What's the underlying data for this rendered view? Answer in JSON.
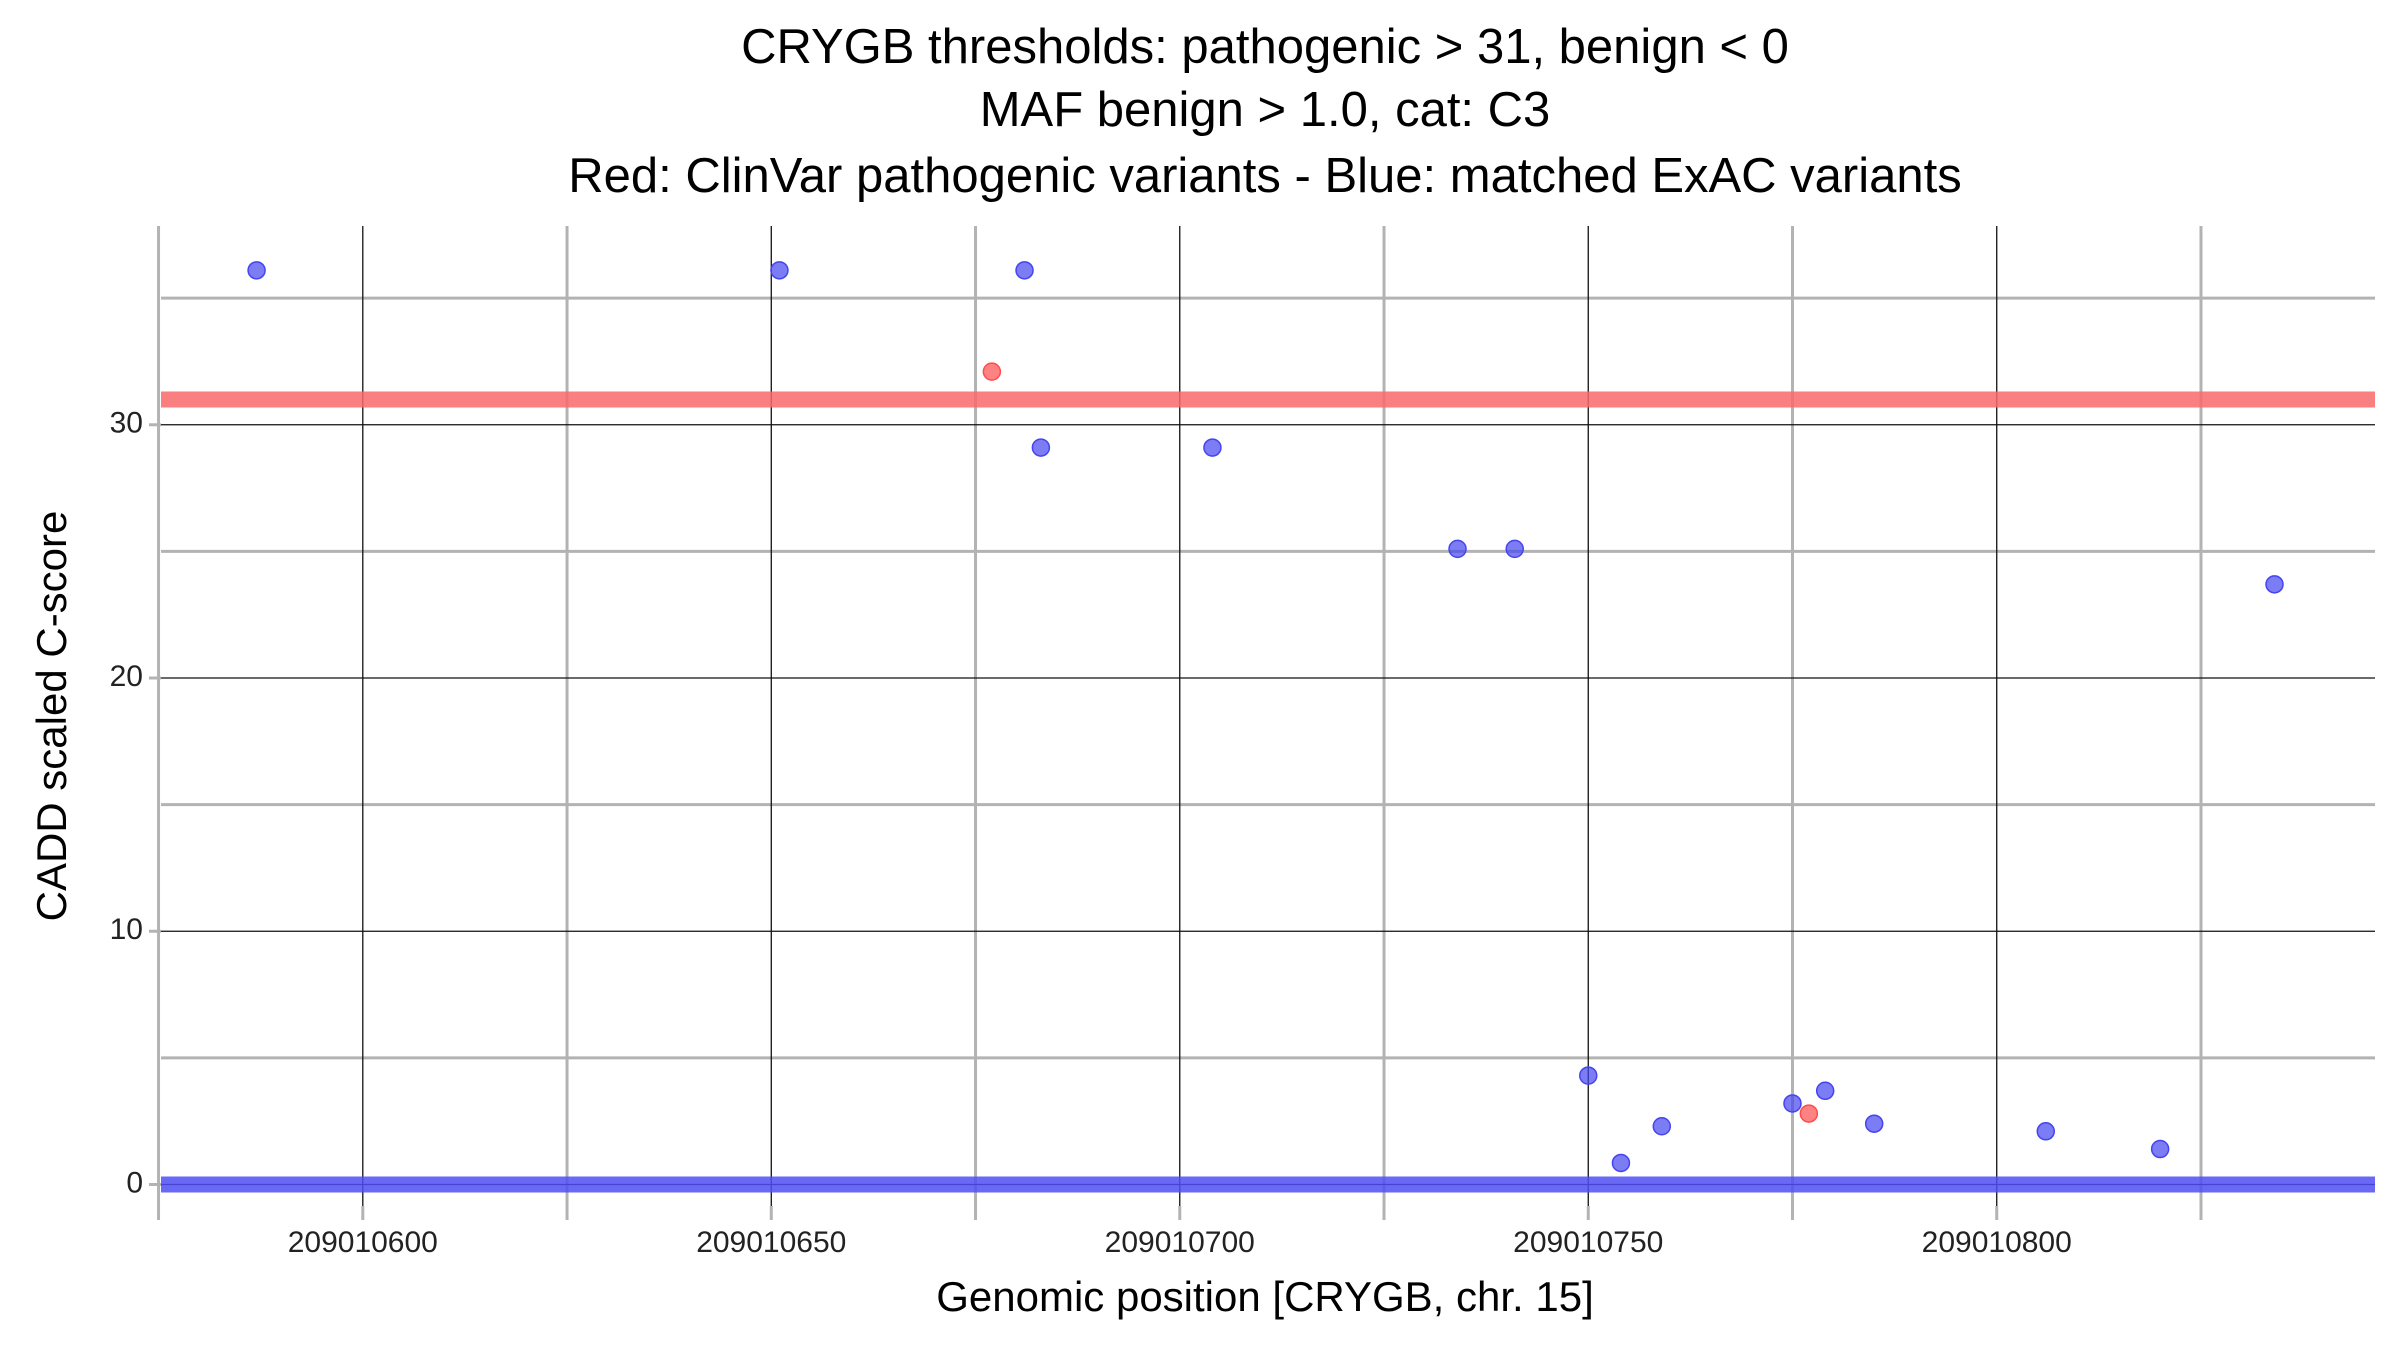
{
  "chart_data": {
    "type": "scatter",
    "title": [
      "CRYGB thresholds: pathogenic > 31, benign < 0",
      "MAF benign > 1.0, cat: C3",
      "Red: ClinVar pathogenic variants - Blue: matched ExAC variants"
    ],
    "x_label": "Genomic position [CRYGB, chr. 15]",
    "y_label": "CADD scaled C-score",
    "xlim": [
      209010575.3,
      209010846.3
    ],
    "ylim": [
      -0.85,
      37.85
    ],
    "xticks": [
      209010600,
      209010650,
      209010700,
      209010750,
      209010800
    ],
    "x_minor_ticks": [
      209010575,
      209010625,
      209010675,
      209010725,
      209010775,
      209010825
    ],
    "yticks": [
      0,
      10,
      20,
      30
    ],
    "y_minor_ticks": [
      5,
      15,
      25,
      35
    ],
    "grid": true,
    "hlines": [
      {
        "value": 31,
        "color": "#f8696b"
      },
      {
        "value": 0,
        "color": "#4f4ff5"
      }
    ],
    "series": [
      {
        "name": "ClinVar pathogenic variants",
        "color": "#ff4d4d",
        "x": [
          209010677,
          209010777
        ],
        "values": [
          32.1,
          2.8
        ]
      },
      {
        "name": "matched ExAC variants",
        "color": "#4545f0",
        "x": [
          209010587,
          209010651,
          209010681,
          209010683,
          209010704,
          209010734,
          209010741,
          209010834,
          209010750,
          209010754,
          209010759,
          209010775,
          209010779,
          209010785,
          209010806,
          209010820
        ],
        "values": [
          36.1,
          36.1,
          36.1,
          29.1,
          29.1,
          25.1,
          25.1,
          23.7,
          4.3,
          0.85,
          2.3,
          3.2,
          3.7,
          2.4,
          2.1,
          1.4
        ]
      }
    ]
  }
}
